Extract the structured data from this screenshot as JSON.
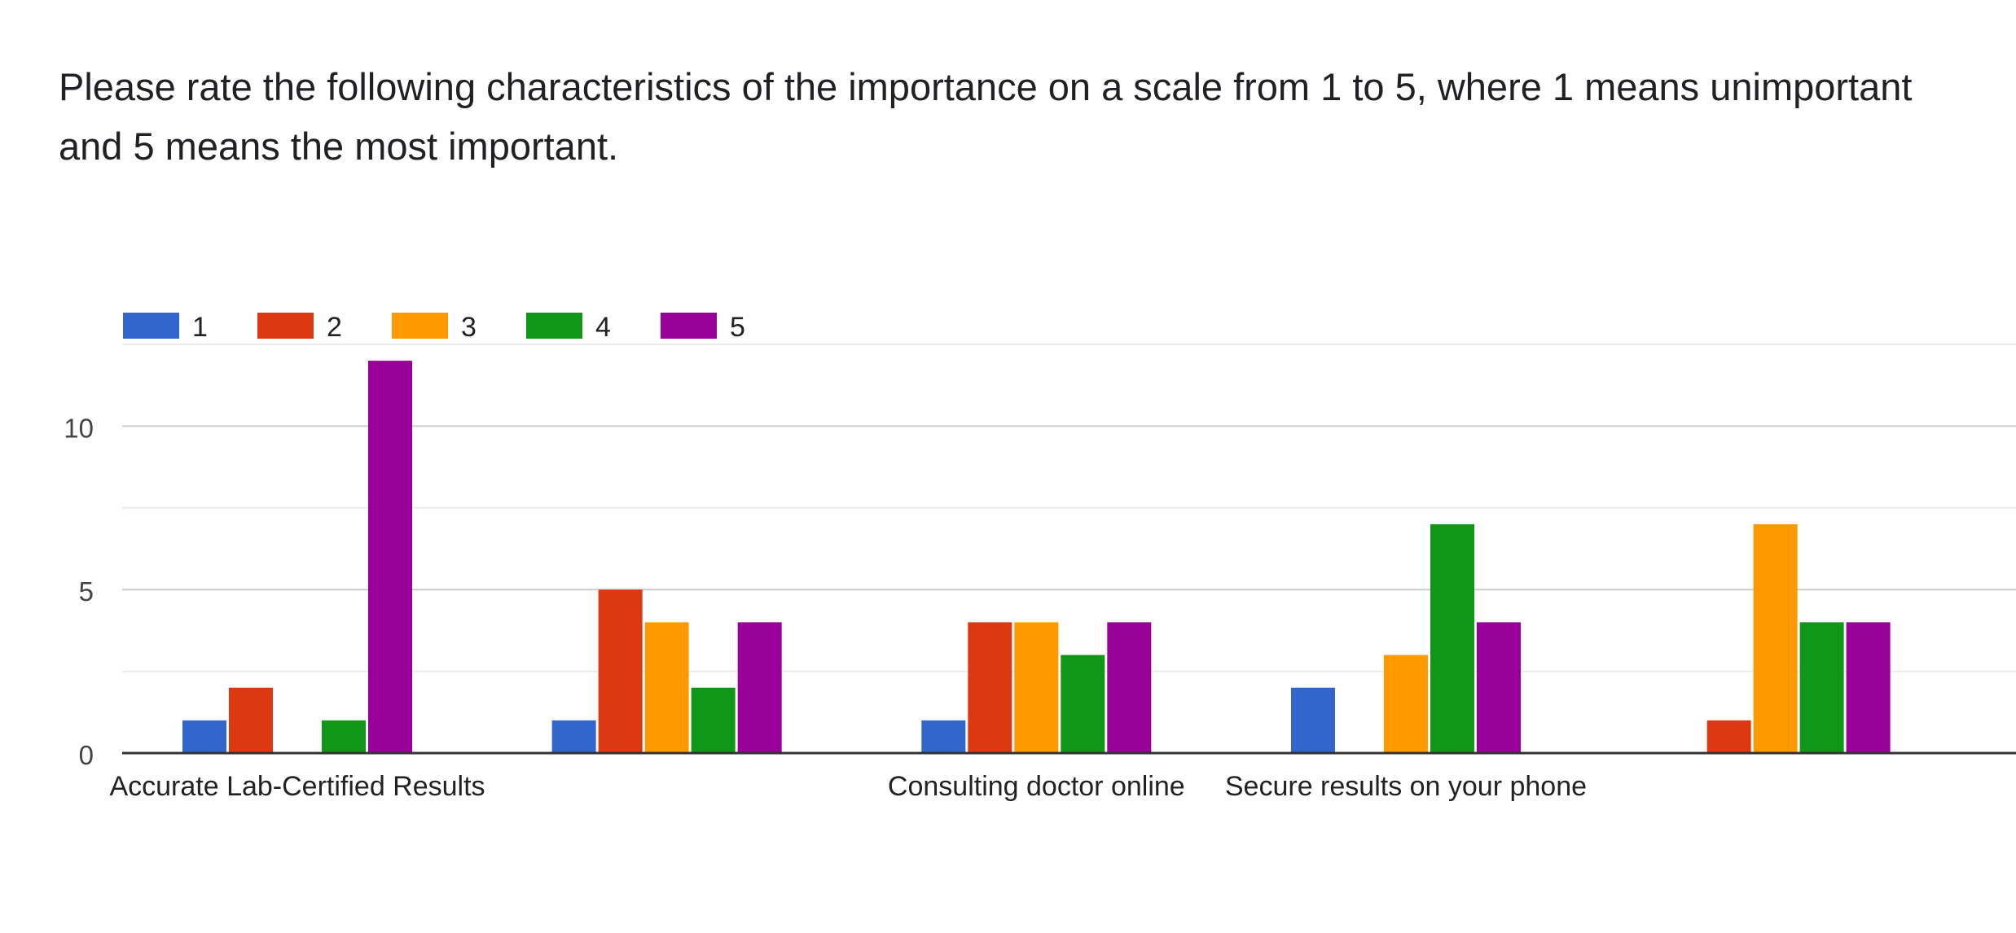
{
  "question": {
    "title": "Please rate the following characteristics of the importance on a scale from 1 to 5, where 1 means unimportant and 5 means the most important."
  },
  "chart_data": {
    "type": "bar",
    "categories": [
      "Accurate Lab-Certified Results",
      "",
      "Consulting doctor online",
      "Secure results on your phone",
      ""
    ],
    "series": [
      {
        "name": "1",
        "color": "#3366cc",
        "values": [
          1,
          1,
          1,
          2,
          0
        ]
      },
      {
        "name": "2",
        "color": "#dc3912",
        "values": [
          2,
          5,
          4,
          0,
          1
        ]
      },
      {
        "name": "3",
        "color": "#ff9900",
        "values": [
          0,
          4,
          4,
          3,
          7
        ]
      },
      {
        "name": "4",
        "color": "#109618",
        "values": [
          1,
          2,
          3,
          7,
          4
        ]
      },
      {
        "name": "5",
        "color": "#990099",
        "values": [
          12,
          4,
          4,
          4,
          4
        ]
      }
    ],
    "y_ticks": [
      0,
      5,
      10
    ],
    "ylim": [
      0,
      12.5
    ],
    "grid": true,
    "legend_position": "top-left",
    "title": "",
    "xlabel": "",
    "ylabel": ""
  }
}
